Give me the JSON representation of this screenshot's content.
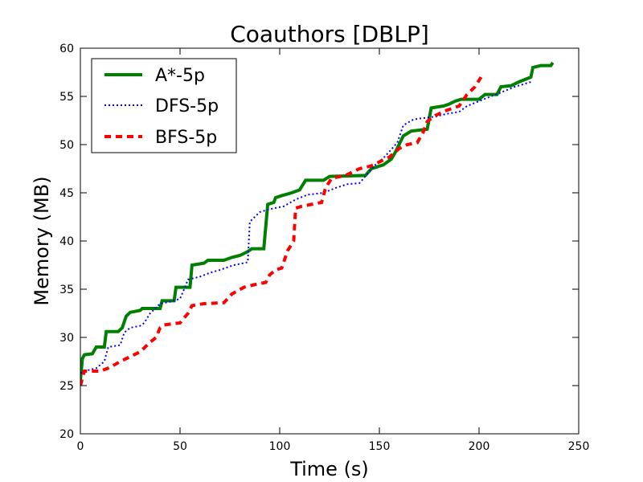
{
  "chart_data": {
    "type": "line",
    "title": "Coauthors [DBLP]",
    "xlabel": "Time (s)",
    "ylabel": "Memory (MB)",
    "xlim": [
      0,
      250
    ],
    "ylim": [
      20,
      60
    ],
    "xticks": [
      0,
      50,
      100,
      150,
      200,
      250
    ],
    "yticks": [
      20,
      25,
      30,
      35,
      40,
      45,
      50,
      55,
      60
    ],
    "grid": false,
    "legend": "top-left",
    "series": [
      {
        "name": "A*-5p",
        "color": "#008000",
        "style": "solid",
        "points": [
          [
            0,
            25.5
          ],
          [
            1,
            27.8
          ],
          [
            2,
            28.2
          ],
          [
            6,
            28.3
          ],
          [
            8,
            29
          ],
          [
            12,
            29
          ],
          [
            13,
            30.6
          ],
          [
            19,
            30.6
          ],
          [
            21,
            31
          ],
          [
            23,
            32.2
          ],
          [
            25,
            32.6
          ],
          [
            30,
            32.8
          ],
          [
            31,
            33
          ],
          [
            40,
            33
          ],
          [
            41,
            33.8
          ],
          [
            47,
            33.8
          ],
          [
            48,
            35.2
          ],
          [
            55,
            35.2
          ],
          [
            56,
            37.5
          ],
          [
            62,
            37.7
          ],
          [
            64,
            38
          ],
          [
            72,
            38
          ],
          [
            76,
            38.3
          ],
          [
            80,
            38.5
          ],
          [
            84,
            38.9
          ],
          [
            86,
            39.2
          ],
          [
            92,
            39.2
          ],
          [
            94,
            43.8
          ],
          [
            97,
            44
          ],
          [
            98,
            44.5
          ],
          [
            101,
            44.7
          ],
          [
            106,
            45
          ],
          [
            110,
            45.3
          ],
          [
            113,
            46.3
          ],
          [
            122,
            46.3
          ],
          [
            125,
            46.7
          ],
          [
            143,
            46.8
          ],
          [
            146,
            47.5
          ],
          [
            152,
            47.9
          ],
          [
            156,
            48.5
          ],
          [
            158,
            49.2
          ],
          [
            162,
            50.9
          ],
          [
            166,
            51.4
          ],
          [
            174,
            51.6
          ],
          [
            176,
            53.8
          ],
          [
            182,
            54
          ],
          [
            185,
            54.2
          ],
          [
            188,
            54.5
          ],
          [
            191,
            54.7
          ],
          [
            200,
            54.7
          ],
          [
            203,
            55.2
          ],
          [
            209,
            55.2
          ],
          [
            211,
            56
          ],
          [
            216,
            56.1
          ],
          [
            220,
            56.5
          ],
          [
            226,
            57
          ],
          [
            227,
            58
          ],
          [
            231,
            58.2
          ],
          [
            236,
            58.2
          ],
          [
            237,
            58.5
          ]
        ]
      },
      {
        "name": "DFS-5p",
        "color": "#0000ff",
        "style": "dotted",
        "points": [
          [
            0,
            26.3
          ],
          [
            4,
            26.6
          ],
          [
            8,
            26.8
          ],
          [
            12,
            27.5
          ],
          [
            14,
            29
          ],
          [
            20,
            29.2
          ],
          [
            22,
            30.5
          ],
          [
            25,
            31
          ],
          [
            30,
            31.2
          ],
          [
            32,
            31.5
          ],
          [
            35,
            32.5
          ],
          [
            40,
            33.5
          ],
          [
            45,
            33.7
          ],
          [
            50,
            34
          ],
          [
            52,
            35
          ],
          [
            54,
            36
          ],
          [
            60,
            36.3
          ],
          [
            65,
            36.7
          ],
          [
            70,
            37
          ],
          [
            77,
            37.5
          ],
          [
            84,
            37.8
          ],
          [
            85,
            42
          ],
          [
            90,
            43
          ],
          [
            95,
            43.3
          ],
          [
            102,
            43.6
          ],
          [
            108,
            44.3
          ],
          [
            114,
            44.8
          ],
          [
            122,
            45
          ],
          [
            128,
            45.5
          ],
          [
            134,
            45.9
          ],
          [
            140,
            46
          ],
          [
            145,
            47.2
          ],
          [
            148,
            47.9
          ],
          [
            152,
            48.6
          ],
          [
            156,
            49.5
          ],
          [
            159,
            50.2
          ],
          [
            162,
            52
          ],
          [
            167,
            52.6
          ],
          [
            170,
            52.7
          ],
          [
            178,
            52.9
          ],
          [
            184,
            53.2
          ],
          [
            190,
            53.4
          ],
          [
            194,
            54
          ],
          [
            200,
            54.5
          ],
          [
            206,
            55
          ],
          [
            212,
            55.5
          ],
          [
            218,
            56
          ],
          [
            226,
            56.5
          ]
        ]
      },
      {
        "name": "BFS-5p",
        "color": "#ff0000",
        "style": "dashed",
        "points": [
          [
            0,
            25
          ],
          [
            2,
            26.5
          ],
          [
            10,
            26.5
          ],
          [
            15,
            26.9
          ],
          [
            20,
            27.5
          ],
          [
            25,
            28
          ],
          [
            30,
            28.5
          ],
          [
            35,
            29.5
          ],
          [
            38,
            30
          ],
          [
            40,
            31
          ],
          [
            42,
            31.3
          ],
          [
            50,
            31.5
          ],
          [
            54,
            32.5
          ],
          [
            56,
            33.3
          ],
          [
            62,
            33.5
          ],
          [
            72,
            33.6
          ],
          [
            76,
            34.5
          ],
          [
            82,
            35.2
          ],
          [
            88,
            35.5
          ],
          [
            93,
            35.7
          ],
          [
            95,
            36.5
          ],
          [
            98,
            37
          ],
          [
            101,
            37.2
          ],
          [
            104,
            39
          ],
          [
            107,
            40
          ],
          [
            108,
            43.4
          ],
          [
            111,
            43.6
          ],
          [
            116,
            43.8
          ],
          [
            121,
            44
          ],
          [
            123,
            45.5
          ],
          [
            126,
            46.5
          ],
          [
            133,
            46.8
          ],
          [
            140,
            47.5
          ],
          [
            146,
            47.8
          ],
          [
            150,
            48.2
          ],
          [
            155,
            48.7
          ],
          [
            160,
            49.6
          ],
          [
            164,
            50
          ],
          [
            169,
            50.2
          ],
          [
            172,
            51.3
          ],
          [
            174,
            52.4
          ],
          [
            178,
            53
          ],
          [
            183,
            53.5
          ],
          [
            190,
            54
          ],
          [
            194,
            55.2
          ],
          [
            198,
            56
          ],
          [
            201,
            57
          ]
        ]
      }
    ]
  }
}
